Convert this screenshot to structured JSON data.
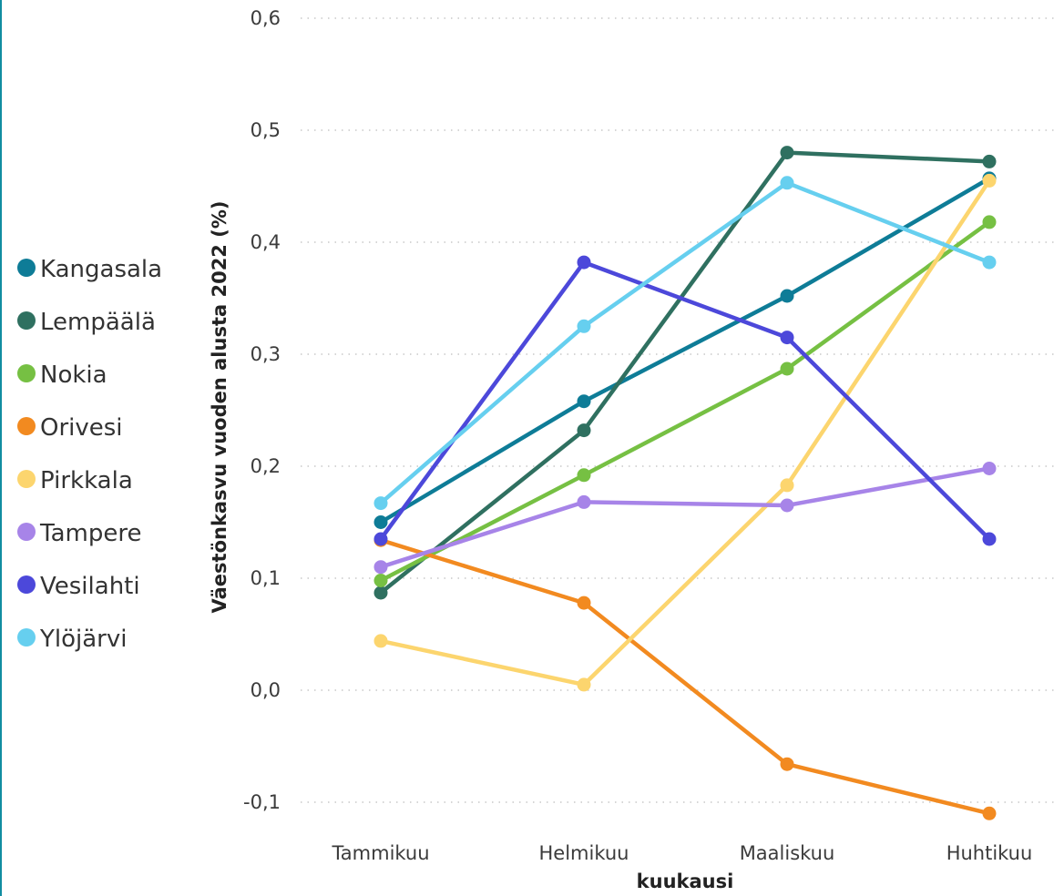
{
  "chart_data": {
    "type": "line",
    "categories": [
      "Tammikuu",
      "Helmikuu",
      "Maaliskuu",
      "Huhtikuu"
    ],
    "xlabel": "kuukausi",
    "ylabel": "Väestönkasvu vuoden alusta 2022 (%)",
    "ylim": [
      -0.12,
      0.6
    ],
    "yticks": [
      {
        "value": -0.1,
        "label": "-0,1"
      },
      {
        "value": 0.0,
        "label": "0,0"
      },
      {
        "value": 0.1,
        "label": "0,1"
      },
      {
        "value": 0.2,
        "label": "0,2"
      },
      {
        "value": 0.3,
        "label": "0,3"
      },
      {
        "value": 0.4,
        "label": "0,4"
      },
      {
        "value": 0.5,
        "label": "0,5"
      },
      {
        "value": 0.6,
        "label": "0,6"
      }
    ],
    "grid": true,
    "legend_position": "left",
    "series": [
      {
        "name": "Kangasala",
        "color": "#0E7C97",
        "values": [
          0.15,
          0.258,
          0.352,
          0.457
        ]
      },
      {
        "name": "Lempäälä",
        "color": "#2F7060",
        "values": [
          0.087,
          0.232,
          0.48,
          0.472
        ]
      },
      {
        "name": "Nokia",
        "color": "#76C043",
        "values": [
          0.098,
          0.192,
          0.287,
          0.418
        ]
      },
      {
        "name": "Orivesi",
        "color": "#F28A20",
        "values": [
          0.134,
          0.078,
          -0.066,
          -0.11
        ]
      },
      {
        "name": "Pirkkala",
        "color": "#FCD56E",
        "values": [
          0.044,
          0.005,
          0.183,
          0.455
        ]
      },
      {
        "name": "Tampere",
        "color": "#A784E8",
        "values": [
          0.11,
          0.168,
          0.165,
          0.198
        ]
      },
      {
        "name": "Vesilahti",
        "color": "#4C48DA",
        "values": [
          0.135,
          0.382,
          0.315,
          0.135
        ]
      },
      {
        "name": "Ylöjärvi",
        "color": "#66CFEF",
        "values": [
          0.167,
          0.325,
          0.453,
          0.382
        ]
      }
    ]
  }
}
